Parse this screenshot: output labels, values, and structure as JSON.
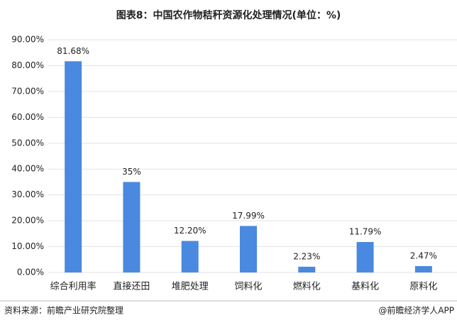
{
  "chart_data": {
    "type": "bar",
    "title": "图表8：中国农作物秸秆资源化处理情况(单位：%)",
    "categories": [
      "综合利用率",
      "直接还田",
      "堆肥处理",
      "饲料化",
      "燃料化",
      "基料化",
      "原料化"
    ],
    "values": [
      81.68,
      35,
      12.2,
      17.99,
      2.23,
      11.79,
      2.47
    ],
    "value_labels": [
      "81.68%",
      "35%",
      "12.20%",
      "17.99%",
      "2.23%",
      "11.79%",
      "2.47%"
    ],
    "color": "#4a89e0",
    "ylim": [
      0,
      90
    ],
    "yticks": [
      {
        "value": 0,
        "label": "0.00%"
      },
      {
        "value": 10,
        "label": "10.00%"
      },
      {
        "value": 20,
        "label": "20.00%"
      },
      {
        "value": 30,
        "label": "30.00%"
      },
      {
        "value": 40,
        "label": "40.00%"
      },
      {
        "value": 50,
        "label": "50.00%"
      },
      {
        "value": 60,
        "label": "60.00%"
      },
      {
        "value": 70,
        "label": "70.00%"
      },
      {
        "value": 80,
        "label": "80.00%"
      },
      {
        "value": 90,
        "label": "90.00%"
      }
    ],
    "grid": true,
    "source": "资料来源：前瞻产业研究院整理",
    "credit": "@前瞻经济学人APP"
  }
}
